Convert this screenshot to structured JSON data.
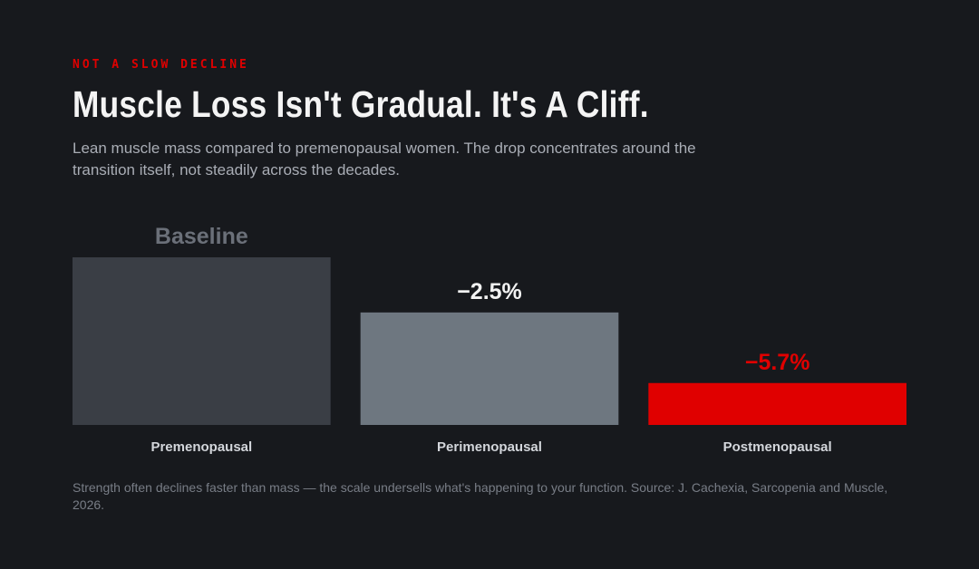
{
  "header": {
    "eyebrow": "NOT A SLOW DECLINE",
    "title": "Muscle Loss Isn't Gradual. It's A Cliff.",
    "subtitle": "Lean muscle mass compared to premenopausal women. The drop concentrates around the transition itself, not steadily across the decades."
  },
  "chart_data": {
    "type": "bar",
    "title": "Muscle Loss Isn't Gradual. It's A Cliff.",
    "xlabel": "",
    "ylabel": "",
    "categories": [
      "Premenopausal",
      "Perimenopausal",
      "Postmenopausal"
    ],
    "values": [
      0,
      -2.5,
      -5.7
    ],
    "value_labels": [
      "Baseline",
      "−2.5%",
      "−5.7%"
    ],
    "bar_colors": [
      "#3a3e45",
      "#6e7780",
      "#e00000"
    ],
    "label_colors": [
      "#6b7079",
      "#f2f2f2",
      "#e00000"
    ],
    "grid": false,
    "legend": "none"
  },
  "footnote": "Strength often declines faster than mass — the scale undersells what's happening to your function. Source: J. Cachexia, Sarcopenia and Muscle, 2026."
}
